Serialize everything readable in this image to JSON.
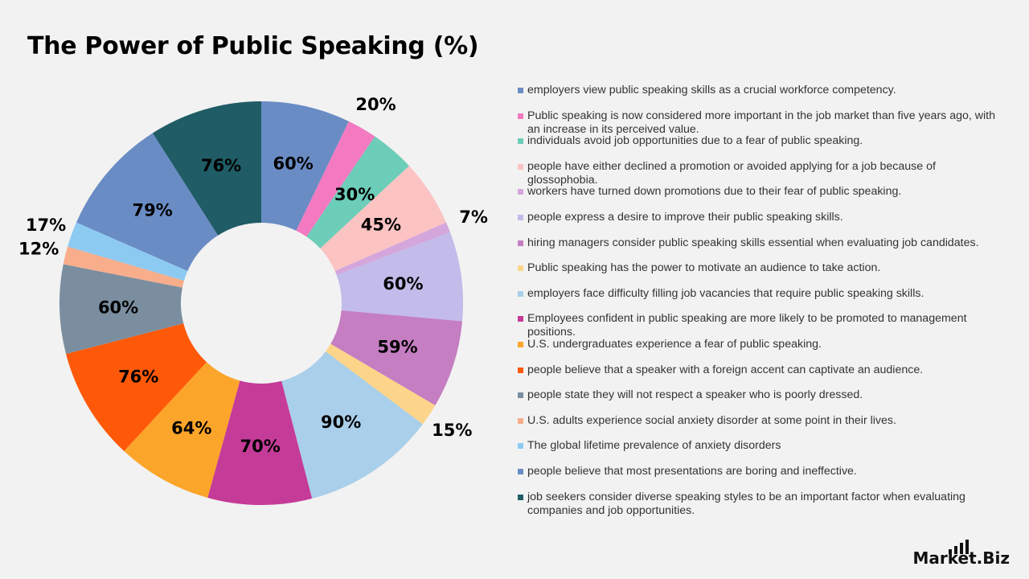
{
  "chart_data": {
    "type": "pie",
    "title": "The Power of Public Speaking (%)",
    "slices": [
      {
        "label": "employers view public speaking skills as a crucial workforce competency.",
        "value": 60,
        "display": "60%",
        "color": "#6a8cc4"
      },
      {
        "label": "Public speaking is now considered more important in the job market than five years ago, with an increase in its perceived value.",
        "value": 20,
        "display": "20%",
        "color": "#f37ac0"
      },
      {
        "label": "individuals avoid job opportunities due to a fear of public speaking.",
        "value": 30,
        "display": "30%",
        "color": "#6ccdb8"
      },
      {
        "label": "people have either declined a promotion or avoided applying for a job because of glossophobia.",
        "value": 45,
        "display": "45%",
        "color": "#fcc3c3"
      },
      {
        "label": "workers have turned down promotions due to their fear of public speaking.",
        "value": 7,
        "display": "7%",
        "color": "#d4a6dc"
      },
      {
        "label": "people express a desire to improve their public speaking skills.",
        "value": 60,
        "display": "60%",
        "color": "#c3bbea"
      },
      {
        "label": "hiring managers consider public speaking skills essential when evaluating job candidates.",
        "value": 59,
        "display": "59%",
        "color": "#c47ec1"
      },
      {
        "label": "Public speaking has the power to motivate  an audience to take action.",
        "value": 15,
        "display": "15%",
        "color": "#fdd58a"
      },
      {
        "label": "employers face difficulty filling job vacancies that require public speaking skills.",
        "value": 90,
        "display": "90%",
        "color": "#a9cfea"
      },
      {
        "label": "Employees confident in public speaking are  more likely to be promoted to management positions.",
        "value": 70,
        "display": "70%",
        "color": "#c53b98"
      },
      {
        "label": "U.S. undergraduates experience a fear of public speaking.",
        "value": 64,
        "display": "64%",
        "color": "#fca52b"
      },
      {
        "label": "people believe that a speaker with a foreign accent can captivate an audience.",
        "value": 76,
        "display": "76%",
        "color": "#fe5909"
      },
      {
        "label": "people state they will not respect a speaker who is poorly dressed.",
        "value": 60,
        "display": "60%",
        "color": "#7a8ea0"
      },
      {
        "label": "U.S. adults experience social anxiety disorder at some point in their lives.",
        "value": 12,
        "display": "12%",
        "color": "#f8ad8b"
      },
      {
        "label": "The global lifetime prevalence of anxiety disorders",
        "value": 17,
        "display": "17%",
        "color": "#8dcaf2"
      },
      {
        "label": "people believe that most presentations are boring and ineffective.",
        "value": 79,
        "display": "79%",
        "color": "#6a8cc4"
      },
      {
        "label": "job seekers consider diverse speaking styles to be an important factor when evaluating companies and job opportunities.",
        "value": 76,
        "display": "76%",
        "color": "#1f5c66"
      }
    ],
    "legend_position": "right"
  },
  "brand": {
    "text": "Market.Biz"
  }
}
